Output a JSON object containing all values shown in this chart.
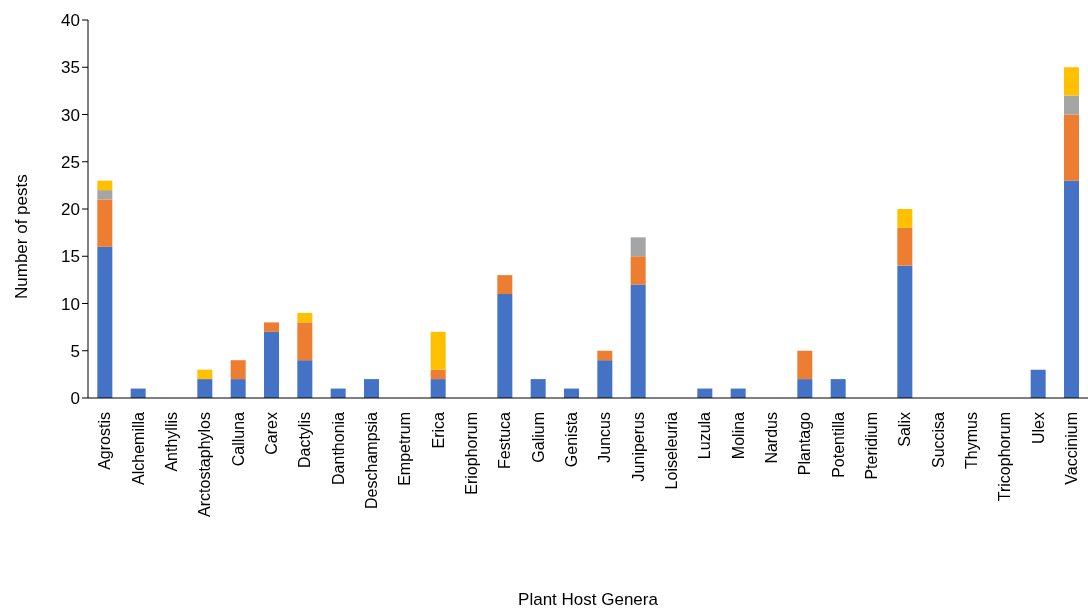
{
  "chart_data": {
    "type": "bar",
    "stacked": true,
    "xlabel": "Plant Host Genera",
    "ylabel": "Number of pests",
    "ylim": [
      0,
      40
    ],
    "yticks": [
      0,
      5,
      10,
      15,
      20,
      25,
      30,
      35,
      40
    ],
    "grid": false,
    "legend": false,
    "categories": [
      "Agrostis",
      "Alchemilla",
      "Anthyllis",
      "Arctostaphylos",
      "Calluna",
      "Carex",
      "Dactylis",
      "Danthonia",
      "Deschampsia",
      "Empetrum",
      "Erica",
      "Eriophorum",
      "Festuca",
      "Galium",
      "Genista",
      "Juncus",
      "Juniperus",
      "Loiseleuria",
      "Luzula",
      "Molina",
      "Nardus",
      "Plantago",
      "Potentilla",
      "Pteridium",
      "Salix",
      "Succisa",
      "Thymus",
      "Tricophorum",
      "Ulex",
      "Vaccinium"
    ],
    "series": [
      {
        "color": "#4472c4",
        "values": [
          16,
          1,
          0,
          2,
          2,
          7,
          4,
          1,
          2,
          0,
          2,
          0,
          11,
          2,
          1,
          4,
          12,
          0,
          1,
          1,
          0,
          2,
          2,
          0,
          14,
          0,
          0,
          0,
          3,
          23
        ]
      },
      {
        "color": "#ed7d31",
        "values": [
          5,
          0,
          0,
          0,
          2,
          1,
          4,
          0,
          0,
          0,
          1,
          0,
          2,
          0,
          0,
          1,
          3,
          0,
          0,
          0,
          0,
          3,
          0,
          0,
          4,
          0,
          0,
          0,
          0,
          7
        ]
      },
      {
        "color": "#a5a5a5",
        "values": [
          1,
          0,
          0,
          0,
          0,
          0,
          0,
          0,
          0,
          0,
          0,
          0,
          0,
          0,
          0,
          0,
          2,
          0,
          0,
          0,
          0,
          0,
          0,
          0,
          0,
          0,
          0,
          0,
          0,
          2
        ]
      },
      {
        "color": "#ffc000",
        "values": [
          1,
          0,
          0,
          1,
          0,
          0,
          1,
          0,
          0,
          0,
          4,
          0,
          0,
          0,
          0,
          0,
          0,
          0,
          0,
          0,
          0,
          0,
          0,
          0,
          2,
          0,
          0,
          0,
          0,
          3
        ]
      }
    ]
  }
}
